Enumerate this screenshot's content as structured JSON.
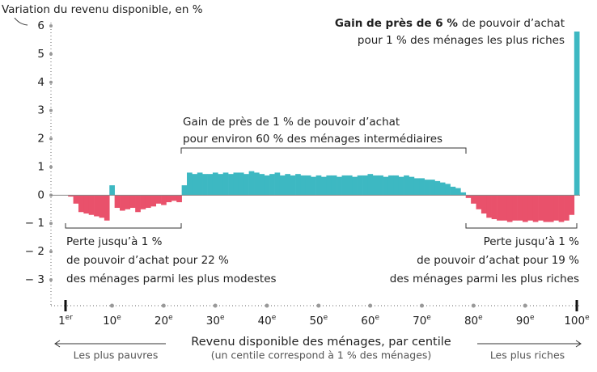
{
  "chart_data": {
    "type": "bar",
    "y_label": "Variation du revenu disponible, en %",
    "x_label": "Revenu disponible des ménages, par centile",
    "x_sublabel": "(un centile correspond à 1 % des ménages)",
    "left_hint": "Les plus pauvres",
    "right_hint": "Les plus riches",
    "positive_color": "#3db8c2",
    "negative_color": "#e9516b",
    "xlim": [
      1,
      100
    ],
    "xticks": [
      {
        "value": 1,
        "label": "1er"
      },
      {
        "value": 10,
        "label": "10e"
      },
      {
        "value": 20,
        "label": "20e"
      },
      {
        "value": 30,
        "label": "30e"
      },
      {
        "value": 40,
        "label": "40e"
      },
      {
        "value": 50,
        "label": "50e"
      },
      {
        "value": 60,
        "label": "60e"
      },
      {
        "value": 70,
        "label": "70e"
      },
      {
        "value": 80,
        "label": "80e"
      },
      {
        "value": 90,
        "label": "90e"
      },
      {
        "value": 100,
        "label": "100e"
      }
    ],
    "ylim": [
      -3,
      6
    ],
    "yticks": [
      {
        "value": -3,
        "label": "− 3"
      },
      {
        "value": -2,
        "label": "− 2"
      },
      {
        "value": -1,
        "label": "− 1"
      },
      0,
      1,
      2,
      3,
      4,
      5,
      6
    ],
    "x": [
      1,
      2,
      3,
      4,
      5,
      6,
      7,
      8,
      9,
      10,
      11,
      12,
      13,
      14,
      15,
      16,
      17,
      18,
      19,
      20,
      21,
      22,
      23,
      24,
      25,
      26,
      27,
      28,
      29,
      30,
      31,
      32,
      33,
      34,
      35,
      36,
      37,
      38,
      39,
      40,
      41,
      42,
      43,
      44,
      45,
      46,
      47,
      48,
      49,
      50,
      51,
      52,
      53,
      54,
      55,
      56,
      57,
      58,
      59,
      60,
      61,
      62,
      63,
      64,
      65,
      66,
      67,
      68,
      69,
      70,
      71,
      72,
      73,
      74,
      75,
      76,
      77,
      78,
      79,
      80,
      81,
      82,
      83,
      84,
      85,
      86,
      87,
      88,
      89,
      90,
      91,
      92,
      93,
      94,
      95,
      96,
      97,
      98,
      99,
      100
    ],
    "values": [
      0,
      -0.05,
      -0.3,
      -0.6,
      -0.65,
      -0.7,
      -0.75,
      -0.8,
      -0.9,
      0.35,
      -0.45,
      -0.55,
      -0.5,
      -0.45,
      -0.6,
      -0.5,
      -0.45,
      -0.4,
      -0.3,
      -0.35,
      -0.25,
      -0.2,
      -0.25,
      0.35,
      0.8,
      0.75,
      0.8,
      0.75,
      0.75,
      0.8,
      0.75,
      0.8,
      0.75,
      0.8,
      0.8,
      0.75,
      0.85,
      0.8,
      0.75,
      0.7,
      0.75,
      0.8,
      0.7,
      0.75,
      0.7,
      0.75,
      0.7,
      0.7,
      0.65,
      0.7,
      0.65,
      0.7,
      0.7,
      0.65,
      0.7,
      0.7,
      0.65,
      0.7,
      0.7,
      0.75,
      0.7,
      0.7,
      0.65,
      0.7,
      0.7,
      0.65,
      0.7,
      0.65,
      0.6,
      0.6,
      0.55,
      0.55,
      0.5,
      0.45,
      0.4,
      0.3,
      0.25,
      0.1,
      -0.1,
      -0.3,
      -0.5,
      -0.65,
      -0.8,
      -0.85,
      -0.9,
      -0.9,
      -0.95,
      -0.9,
      -0.9,
      -0.95,
      -0.9,
      -0.95,
      -0.9,
      -0.95,
      -0.95,
      -0.9,
      -0.95,
      -0.9,
      -0.7,
      5.8
    ],
    "annotation_top_bold": "Gain de près de 6 %",
    "annotation_top_rest": "de pouvoir d’achat",
    "annotation_top_line2": "pour 1 % des ménages les plus riches",
    "annotation_middle": [
      "Gain de près de 1 % de pouvoir d’achat",
      "pour environ 60 % des ménages intermédiaires"
    ],
    "annotation_left": [
      "Perte jusqu’à 1 %",
      "de pouvoir d’achat pour 22 %",
      "des ménages parmi les plus modestes"
    ],
    "annotation_right": [
      "Perte jusqu’à 1 %",
      "de pouvoir d’achat pour 19 %",
      "des ménages parmi les plus riches"
    ]
  }
}
